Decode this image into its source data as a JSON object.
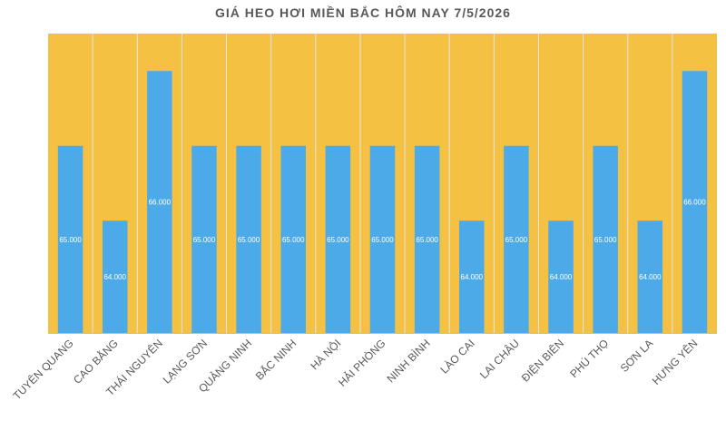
{
  "chart_data": {
    "type": "bar",
    "title": "GIÁ HEO HƠI MIỀN BẮC HÔM NAY 7/5/2026",
    "categories": [
      "TUYÊN QUANG",
      "CAO BẰNG",
      "THÁI NGUYÊN",
      "LẠNG SƠN",
      "QUẢNG NINH",
      "BẮC NINH",
      "HÀ NỘI",
      "HẢI PHÒNG",
      "NINH BÌNH",
      "LÀO CAI",
      "LAI CHÂU",
      "ĐIỆN BIÊN",
      "PHÚ THỌ",
      "SƠN LA",
      "HƯNG YÊN"
    ],
    "values": [
      65000,
      64000,
      66000,
      65000,
      65000,
      65000,
      65000,
      65000,
      65000,
      64000,
      65000,
      64000,
      65000,
      64000,
      66000
    ],
    "value_labels": [
      "65.000",
      "64.000",
      "66.000",
      "65.000",
      "65.000",
      "65.000",
      "65.000",
      "65.000",
      "65.000",
      "64.000",
      "65.000",
      "64.000",
      "65.000",
      "64.000",
      "66.000"
    ],
    "xlabel": "",
    "ylabel": "",
    "ylim": [
      62500,
      66500
    ],
    "grid": false,
    "legend": "none",
    "colors": {
      "bar": "#4DAAE8",
      "plot_background": "#F4C142",
      "separator": "#E6E6E6",
      "axis_line": "#BFBFBF",
      "title": "#595959",
      "category_label": "#595959",
      "value_label": "#FFFFFF"
    }
  }
}
